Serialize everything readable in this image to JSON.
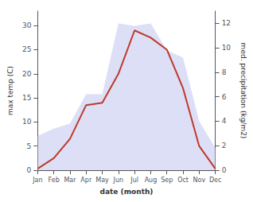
{
  "chart_data": {
    "type": "line",
    "xlabel": "date (month)",
    "ylabel": "max temp (C)",
    "y2label": "med. precipitation (kg/m2)",
    "categories": [
      "Jan",
      "Feb",
      "Mar",
      "Apr",
      "May",
      "Jun",
      "Jul",
      "Aug",
      "Sep",
      "Oct",
      "Nov",
      "Dec"
    ],
    "series": [
      {
        "type": "area",
        "axis": "y2",
        "color": "#c5caf0",
        "values": [
          2.8,
          3.4,
          3.8,
          6.2,
          6.2,
          12.0,
          11.8,
          12.0,
          9.8,
          9.2,
          4.0,
          1.8
        ]
      },
      {
        "type": "line",
        "color": "#c0392b",
        "values": [
          0.3,
          2.5,
          6.5,
          13.5,
          14.0,
          20.0,
          29.0,
          27.5,
          25.0,
          17.0,
          5.0,
          0.3
        ]
      }
    ],
    "ylim": [
      0,
      33
    ],
    "yticks": [
      0,
      5,
      10,
      15,
      20,
      25,
      30
    ],
    "y2lim": [
      0,
      13
    ],
    "y2ticks": [
      0,
      2,
      4,
      6,
      8,
      10,
      12
    ],
    "grid": false
  }
}
